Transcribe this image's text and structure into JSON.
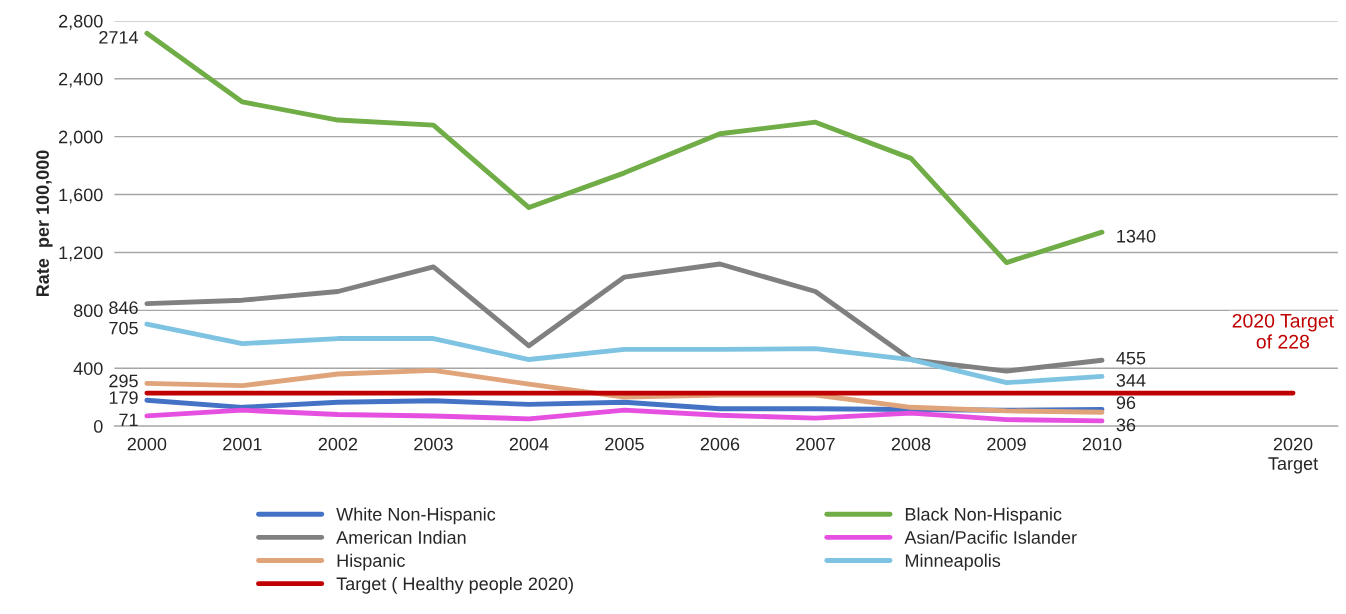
{
  "chart_data": {
    "type": "line",
    "ylabel": "Rate  per 100,000",
    "categories": [
      "2000",
      "2001",
      "2002",
      "2003",
      "2004",
      "2005",
      "2006",
      "2007",
      "2008",
      "2009",
      "2010",
      null,
      "2020\nTarget"
    ],
    "series": [
      {
        "name": "White Non-Hispanic",
        "color": "#4472c4",
        "values": [
          179,
          130,
          165,
          175,
          150,
          165,
          120,
          120,
          115,
          110,
          115,
          null,
          null
        ],
        "value_labels": [
          "179",
          null,
          null,
          null,
          null,
          null,
          null,
          null,
          null,
          null,
          null,
          null,
          null
        ]
      },
      {
        "name": "Black Non-Hispanic",
        "color": "#70ad47",
        "values": [
          2714,
          2240,
          2115,
          2080,
          1510,
          1750,
          2020,
          2100,
          1850,
          1130,
          1340,
          null,
          null
        ],
        "value_labels": [
          "2714",
          null,
          null,
          null,
          null,
          null,
          null,
          null,
          null,
          null,
          "1340",
          null,
          null
        ]
      },
      {
        "name": "American Indian",
        "color": "#808080",
        "values": [
          846,
          870,
          930,
          1100,
          555,
          1030,
          1120,
          930,
          460,
          380,
          455,
          null,
          null
        ],
        "value_labels": [
          "846",
          null,
          null,
          null,
          null,
          null,
          null,
          null,
          null,
          null,
          "455",
          null,
          null
        ]
      },
      {
        "name": "Asian/Pacific Islander",
        "color": "#e550e0",
        "values": [
          71,
          110,
          80,
          70,
          50,
          110,
          75,
          55,
          90,
          45,
          36,
          null,
          null
        ],
        "value_labels": [
          "71",
          null,
          null,
          null,
          null,
          null,
          null,
          null,
          null,
          null,
          "36",
          null,
          null
        ]
      },
      {
        "name": "Hispanic",
        "color": "#e0a47a",
        "values": [
          295,
          280,
          360,
          385,
          290,
          200,
          215,
          215,
          130,
          105,
          96,
          null,
          null
        ],
        "value_labels": [
          "295",
          null,
          null,
          null,
          null,
          null,
          null,
          null,
          null,
          null,
          "96",
          null,
          null
        ]
      },
      {
        "name": "Minneapolis",
        "color": "#7ec4e2",
        "values": [
          705,
          570,
          605,
          605,
          460,
          530,
          530,
          535,
          460,
          300,
          344,
          null,
          null
        ],
        "value_labels": [
          "705",
          null,
          null,
          null,
          null,
          null,
          null,
          null,
          null,
          null,
          "344",
          null,
          null
        ]
      },
      {
        "name": "Target ( Healthy people 2020)",
        "color": "#c00000",
        "values": [
          228,
          228,
          228,
          228,
          228,
          228,
          228,
          228,
          228,
          228,
          228,
          228,
          228
        ]
      }
    ],
    "ylim": [
      0,
      2800
    ],
    "yticks": [
      0,
      400,
      800,
      {
        "value": 1200,
        "label": "1,200"
      },
      {
        "value": 1600,
        "label": "1,600"
      },
      {
        "value": 2000,
        "label": "2,000"
      },
      {
        "value": 2400,
        "label": "2,400"
      },
      {
        "value": 2800,
        "label": "2,800"
      }
    ],
    "annotations": [
      "2020 Target\nof 228"
    ],
    "grid": "y",
    "legend": "bottom",
    "marker": "none",
    "line_style": "solid"
  }
}
